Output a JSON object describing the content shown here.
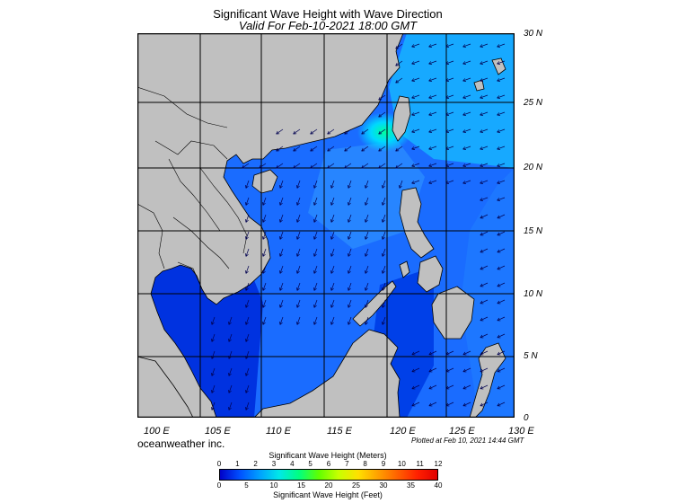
{
  "title": "Significant Wave Height with Wave Direction",
  "subtitle": "Valid For Feb-10-2021 18:00 GMT",
  "credit": "oceanweather inc.",
  "plotted": "Plotted at Feb 10, 2021 14:44 GMT",
  "lon_labels": [
    "100 E",
    "105 E",
    "110 E",
    "115 E",
    "120 E",
    "125 E",
    "130 E"
  ],
  "lat_labels": [
    "30 N",
    "25 N",
    "20 N",
    "15 N",
    "10 N",
    "5 N",
    "0"
  ],
  "colorbar": {
    "meters_title": "Significant Wave Height (Meters)",
    "feet_title": "Significant Wave Height (Feet)",
    "meters_ticks": [
      "0",
      "1",
      "2",
      "3",
      "4",
      "5",
      "6",
      "7",
      "8",
      "9",
      "10",
      "11",
      "12"
    ],
    "feet_ticks": [
      "0",
      "5",
      "10",
      "15",
      "20",
      "25",
      "30",
      "35",
      "40"
    ],
    "colors": [
      "#0000c8",
      "#0050ff",
      "#00a0ff",
      "#00e8e8",
      "#00ff80",
      "#60ff00",
      "#c8ff00",
      "#ffe000",
      "#ffa000",
      "#ff6000",
      "#ff2000",
      "#e00000"
    ]
  },
  "colors": {
    "land": "#c0c0c0",
    "ocean_low": "#0032e6",
    "ocean_mid": "#1e78ff",
    "ocean_high": "#00d2ff",
    "arrow": "#000050"
  }
}
